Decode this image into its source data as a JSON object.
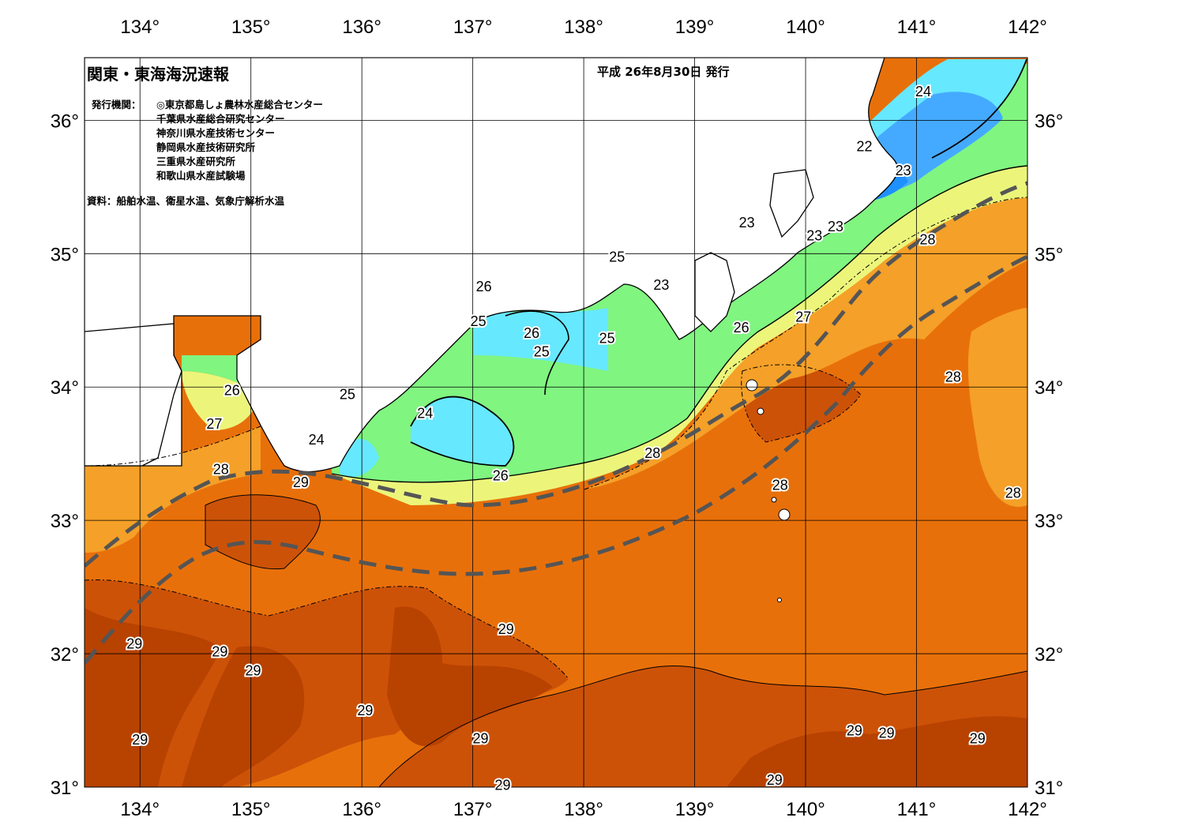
{
  "header": {
    "title": "関東・東海海況速報",
    "issued": "平成 26年8月30日 発行",
    "orgs_label": "発行機関：",
    "orgs": [
      "◎東京都島しょ農林水産総合センター",
      "千葉県水産総合研究センター",
      "神奈川県水産技術センター",
      "静岡県水産技術研究所",
      "三重県水産研究所",
      "和歌山県水産試験場"
    ],
    "source": "資料：船舶水温、衛星水温、気象庁解析水温"
  },
  "axes": {
    "lon_ticks": [
      "134°",
      "135°",
      "136°",
      "137°",
      "138°",
      "139°",
      "140°",
      "141°",
      "142°"
    ],
    "lat_ticks": [
      "36°",
      "35°",
      "34°",
      "33°",
      "32°",
      "31°"
    ]
  },
  "contour_labels": [
    {
      "text": "24",
      "lon": 141.06,
      "lat": 36.22
    },
    {
      "text": "22",
      "lon": 140.53,
      "lat": 35.81
    },
    {
      "text": "23",
      "lon": 140.88,
      "lat": 35.63
    },
    {
      "text": "23",
      "lon": 139.47,
      "lat": 35.24
    },
    {
      "text": "23",
      "lon": 140.08,
      "lat": 35.14
    },
    {
      "text": "23",
      "lon": 140.27,
      "lat": 35.21
    },
    {
      "text": "25",
      "lon": 138.3,
      "lat": 34.98
    },
    {
      "text": "23",
      "lon": 138.7,
      "lat": 34.77
    },
    {
      "text": "26",
      "lon": 137.1,
      "lat": 34.76
    },
    {
      "text": "25",
      "lon": 137.05,
      "lat": 34.5
    },
    {
      "text": "26",
      "lon": 137.53,
      "lat": 34.41
    },
    {
      "text": "25",
      "lon": 137.62,
      "lat": 34.27
    },
    {
      "text": "25",
      "lon": 138.21,
      "lat": 34.37
    },
    {
      "text": "26",
      "lon": 139.42,
      "lat": 34.45
    },
    {
      "text": "27",
      "lon": 139.98,
      "lat": 34.53
    },
    {
      "text": "28",
      "lon": 141.1,
      "lat": 35.11
    },
    {
      "text": "28",
      "lon": 141.33,
      "lat": 34.08
    },
    {
      "text": "26",
      "lon": 134.83,
      "lat": 33.98
    },
    {
      "text": "27",
      "lon": 134.67,
      "lat": 33.73
    },
    {
      "text": "25",
      "lon": 135.87,
      "lat": 33.95
    },
    {
      "text": "24",
      "lon": 136.57,
      "lat": 33.81
    },
    {
      "text": "24",
      "lon": 135.59,
      "lat": 33.61
    },
    {
      "text": "28",
      "lon": 134.73,
      "lat": 33.39
    },
    {
      "text": "29",
      "lon": 135.45,
      "lat": 33.29
    },
    {
      "text": "26",
      "lon": 137.25,
      "lat": 33.34
    },
    {
      "text": "28",
      "lon": 138.62,
      "lat": 33.51
    },
    {
      "text": "28",
      "lon": 139.77,
      "lat": 33.27
    },
    {
      "text": "28",
      "lon": 141.87,
      "lat": 33.21
    },
    {
      "text": "29",
      "lon": 137.3,
      "lat": 32.19
    },
    {
      "text": "29",
      "lon": 133.95,
      "lat": 32.08
    },
    {
      "text": "29",
      "lon": 134.72,
      "lat": 32.02
    },
    {
      "text": "29",
      "lon": 135.02,
      "lat": 31.88
    },
    {
      "text": "29",
      "lon": 136.03,
      "lat": 31.58
    },
    {
      "text": "29",
      "lon": 134.0,
      "lat": 31.36
    },
    {
      "text": "29",
      "lon": 137.07,
      "lat": 31.37
    },
    {
      "text": "29",
      "lon": 137.27,
      "lat": 31.02
    },
    {
      "text": "29",
      "lon": 139.72,
      "lat": 31.06
    },
    {
      "text": "29",
      "lon": 140.44,
      "lat": 31.43
    },
    {
      "text": "29",
      "lon": 140.73,
      "lat": 31.41
    },
    {
      "text": "29",
      "lon": 141.55,
      "lat": 31.37
    }
  ],
  "colors": {
    "t22": "#1e90ff",
    "t23": "#44aaff",
    "t24": "#66e8ff",
    "t25": "#80f580",
    "t26": "#ecf57a",
    "t27": "#f5a028",
    "t28": "#e8700a",
    "t29": "#cc5208",
    "t29b": "#b84200",
    "current_path": "#555555",
    "land": "#ffffff"
  }
}
